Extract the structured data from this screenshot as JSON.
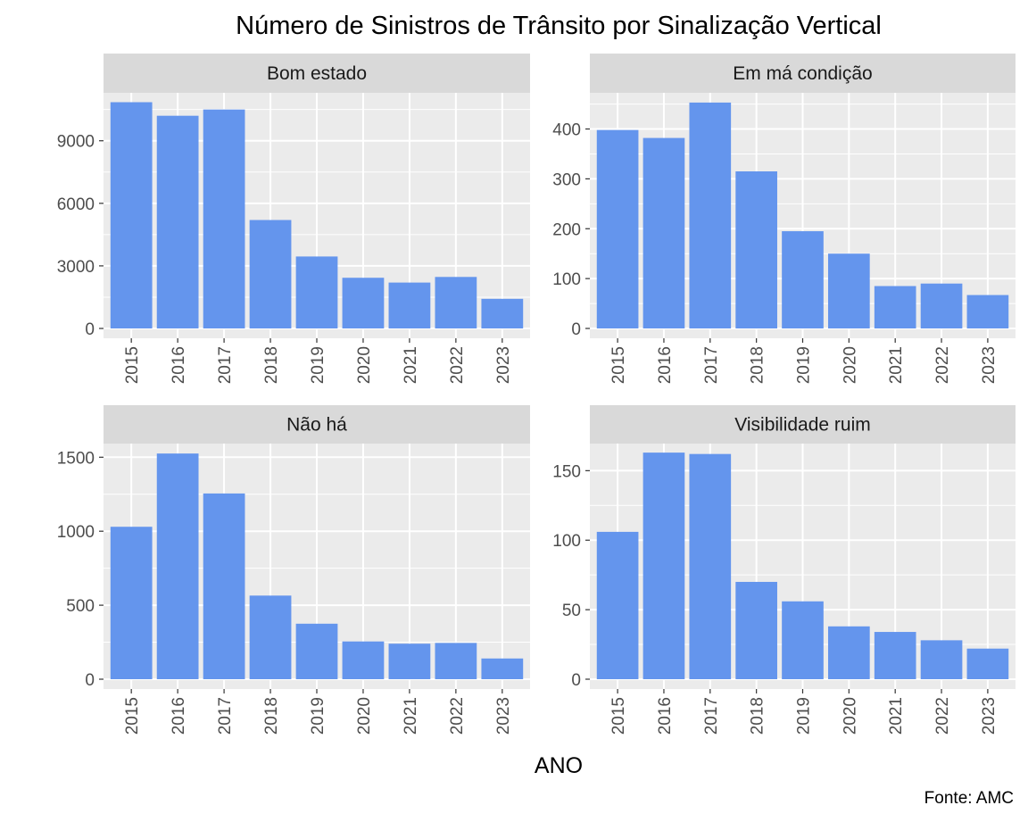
{
  "chart_data": {
    "type": "bar",
    "title": "Número de Sinistros de Trânsito por Sinalização Vertical",
    "xlabel": "ANO",
    "ylabel": "",
    "caption": "Fonte: AMC",
    "categories": [
      "2015",
      "2016",
      "2017",
      "2018",
      "2019",
      "2020",
      "2021",
      "2022",
      "2023"
    ],
    "bar_color": "#6495ED",
    "panel_background": "#EBEBEB",
    "strip_background": "#D9D9D9",
    "grid": true,
    "facets": [
      {
        "name": "Bom estado",
        "values": [
          10850,
          10200,
          10500,
          5200,
          3450,
          2430,
          2200,
          2470,
          1420
        ],
        "ylim": [
          0,
          11000
        ],
        "yticks": [
          0,
          3000,
          6000,
          9000
        ],
        "ytick_labels": [
          "0",
          "3000",
          "6000",
          "9000"
        ]
      },
      {
        "name": "Em má condição",
        "values": [
          398,
          382,
          453,
          315,
          195,
          150,
          85,
          90,
          67
        ],
        "ylim": [
          0,
          460
        ],
        "yticks": [
          0,
          100,
          200,
          300,
          400
        ],
        "ytick_labels": [
          "0",
          "100",
          "200",
          "300",
          "400"
        ]
      },
      {
        "name": "Não há",
        "values": [
          1030,
          1525,
          1255,
          565,
          375,
          255,
          240,
          245,
          140
        ],
        "ylim": [
          0,
          1550
        ],
        "yticks": [
          0,
          500,
          1000,
          1500
        ],
        "ytick_labels": [
          "0",
          "500",
          "1000",
          "1500"
        ]
      },
      {
        "name": "Visibilidade ruim",
        "values": [
          106,
          163,
          162,
          70,
          56,
          38,
          34,
          28,
          22
        ],
        "ylim": [
          0,
          165
        ],
        "yticks": [
          0,
          50,
          100,
          150
        ],
        "ytick_labels": [
          "0",
          "50",
          "100",
          "150"
        ]
      }
    ]
  }
}
